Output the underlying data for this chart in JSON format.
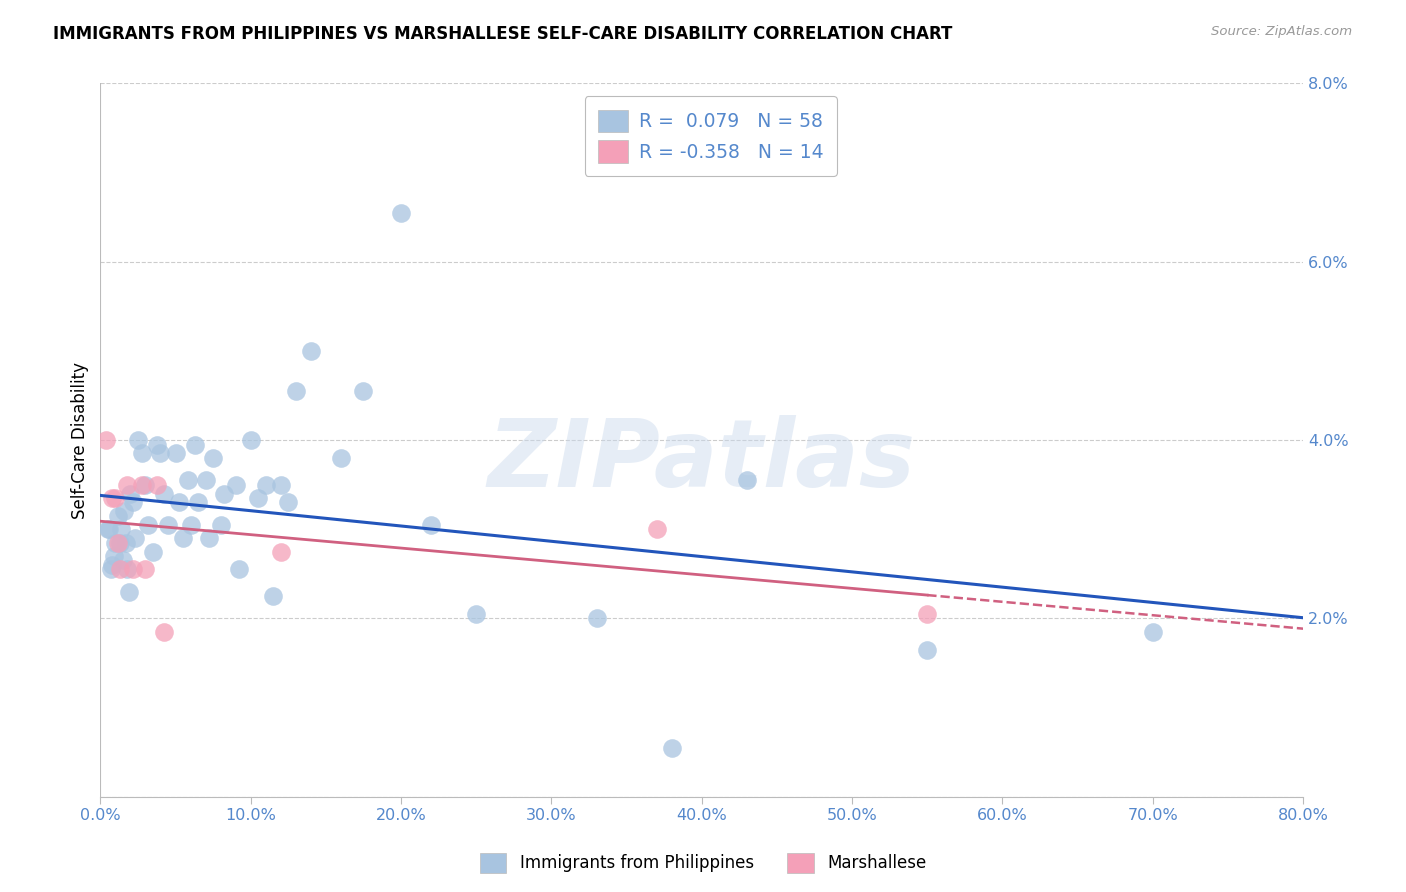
{
  "title": "IMMIGRANTS FROM PHILIPPINES VS MARSHALLESE SELF-CARE DISABILITY CORRELATION CHART",
  "source": "Source: ZipAtlas.com",
  "ylabel": "Self-Care Disability",
  "legend_label1": "Immigrants from Philippines",
  "legend_label2": "Marshallese",
  "R1": 0.079,
  "N1": 58,
  "R2": -0.358,
  "N2": 14,
  "color1": "#A8C4E0",
  "color2": "#F4A0B8",
  "trendline1_color": "#2255BB",
  "trendline2_color": "#D06080",
  "tick_color": "#5588CC",
  "xlim": [
    0.0,
    0.8
  ],
  "ylim": [
    0.0,
    0.08
  ],
  "xticks": [
    0.0,
    0.1,
    0.2,
    0.3,
    0.4,
    0.5,
    0.6,
    0.7,
    0.8
  ],
  "yticks_right": [
    0.02,
    0.04,
    0.06,
    0.08
  ],
  "watermark_text": "ZIPatlas",
  "philippines_x": [
    0.005,
    0.006,
    0.007,
    0.008,
    0.009,
    0.01,
    0.012,
    0.013,
    0.014,
    0.015,
    0.016,
    0.017,
    0.018,
    0.019,
    0.02,
    0.022,
    0.023,
    0.025,
    0.028,
    0.03,
    0.032,
    0.035,
    0.038,
    0.04,
    0.042,
    0.045,
    0.05,
    0.052,
    0.055,
    0.058,
    0.06,
    0.063,
    0.065,
    0.07,
    0.072,
    0.075,
    0.08,
    0.082,
    0.09,
    0.092,
    0.1,
    0.105,
    0.11,
    0.115,
    0.12,
    0.125,
    0.13,
    0.14,
    0.16,
    0.175,
    0.2,
    0.22,
    0.25,
    0.33,
    0.38,
    0.43,
    0.55,
    0.7
  ],
  "philippines_y": [
    0.03,
    0.03,
    0.0255,
    0.026,
    0.027,
    0.0285,
    0.0315,
    0.0285,
    0.03,
    0.0265,
    0.032,
    0.0285,
    0.0255,
    0.023,
    0.034,
    0.033,
    0.029,
    0.04,
    0.0385,
    0.035,
    0.0305,
    0.0275,
    0.0395,
    0.0385,
    0.034,
    0.0305,
    0.0385,
    0.033,
    0.029,
    0.0355,
    0.0305,
    0.0395,
    0.033,
    0.0355,
    0.029,
    0.038,
    0.0305,
    0.034,
    0.035,
    0.0255,
    0.04,
    0.0335,
    0.035,
    0.0225,
    0.035,
    0.033,
    0.0455,
    0.05,
    0.038,
    0.0455,
    0.0655,
    0.0305,
    0.0205,
    0.02,
    0.0055,
    0.0355,
    0.0165,
    0.0185
  ],
  "marshallese_x": [
    0.004,
    0.008,
    0.01,
    0.012,
    0.013,
    0.018,
    0.022,
    0.028,
    0.03,
    0.038,
    0.042,
    0.12,
    0.37,
    0.55
  ],
  "marshallese_y": [
    0.04,
    0.0335,
    0.0335,
    0.0285,
    0.0255,
    0.035,
    0.0255,
    0.035,
    0.0255,
    0.035,
    0.0185,
    0.0275,
    0.03,
    0.0205
  ]
}
